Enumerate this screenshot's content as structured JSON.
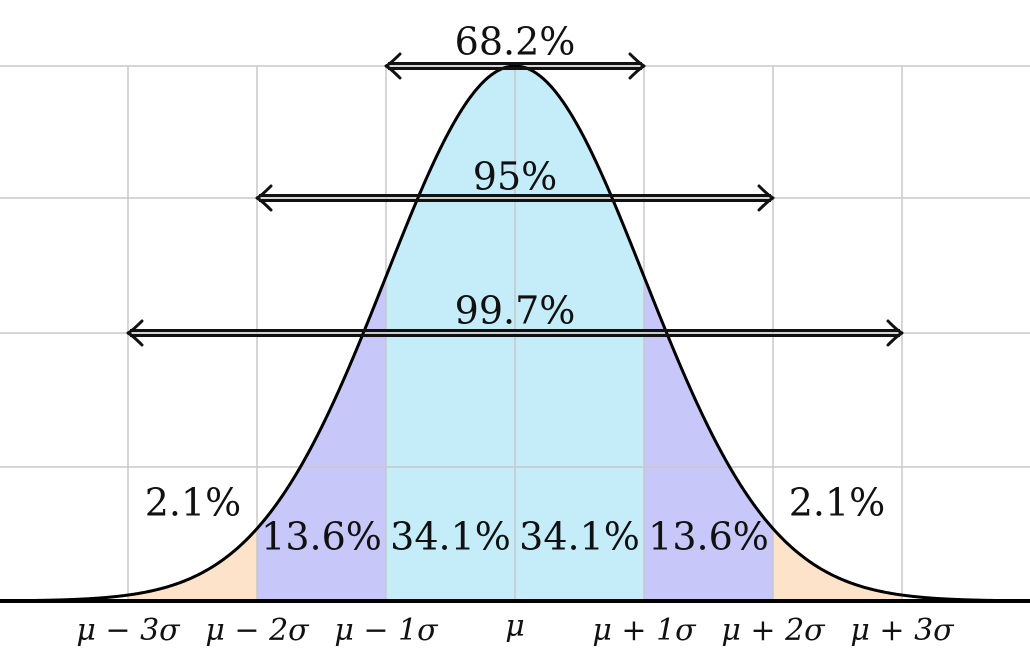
{
  "chart_data": {
    "type": "area",
    "title": "",
    "xlabel": "",
    "ylabel": "",
    "distribution": "normal",
    "x_units": "standard deviations from mean",
    "xlim": [
      -4,
      4
    ],
    "ylim": [
      0,
      1
    ],
    "grid": true,
    "tick_labels": [
      {
        "x": -3,
        "label": "μ − 3σ"
      },
      {
        "x": -2,
        "label": "μ − 2σ"
      },
      {
        "x": -1,
        "label": "μ − 1σ"
      },
      {
        "x": 0,
        "label": "μ"
      },
      {
        "x": 1,
        "label": "μ + 1σ"
      },
      {
        "x": 2,
        "label": "μ + 2σ"
      },
      {
        "x": 3,
        "label": "μ + 3σ"
      }
    ],
    "regions": [
      {
        "from": -3,
        "to": -2,
        "label": "2.1%",
        "color": "#fde3c9"
      },
      {
        "from": -2,
        "to": -1,
        "label": "13.6%",
        "color": "#c7c7fa"
      },
      {
        "from": -1,
        "to": 0,
        "label": "34.1%",
        "color": "#c4ecf9"
      },
      {
        "from": 0,
        "to": 1,
        "label": "34.1%",
        "color": "#c4ecf9"
      },
      {
        "from": 1,
        "to": 2,
        "label": "13.6%",
        "color": "#c7c7fa"
      },
      {
        "from": 2,
        "to": 3,
        "label": "2.1%",
        "color": "#fde3c9"
      }
    ],
    "spans": [
      {
        "from": -1,
        "to": 1,
        "label": "68.2%"
      },
      {
        "from": -2,
        "to": 2,
        "label": "95%"
      },
      {
        "from": -3,
        "to": 3,
        "label": "99.7%"
      }
    ],
    "colors": {
      "curve": "#000000",
      "grid": "#c8c8c8",
      "tail": "#fde3c9",
      "two_sigma": "#c7c7fa",
      "one_sigma": "#c4ecf9"
    }
  }
}
